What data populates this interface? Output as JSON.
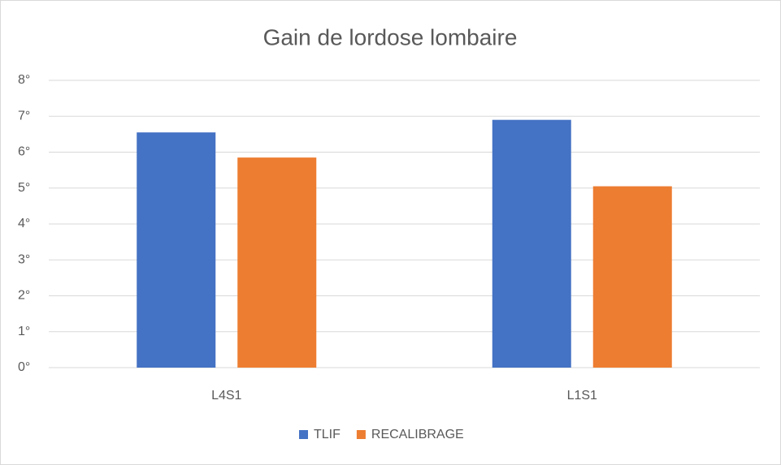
{
  "chart_data": {
    "type": "bar",
    "title": "Gain de lordose lombaire",
    "categories": [
      "L4S1",
      "L1S1"
    ],
    "series": [
      {
        "name": "TLIF",
        "color": "#4472c4",
        "values": [
          6.55,
          6.9
        ]
      },
      {
        "name": "RECALIBRAGE",
        "color": "#ed7d31",
        "values": [
          5.85,
          5.05
        ]
      }
    ],
    "ylim": [
      0,
      8
    ],
    "yticks": [
      {
        "value": 0,
        "label": "0°"
      },
      {
        "value": 1,
        "label": "1°"
      },
      {
        "value": 2,
        "label": "2°"
      },
      {
        "value": 3,
        "label": "3°"
      },
      {
        "value": 4,
        "label": "4°"
      },
      {
        "value": 5,
        "label": "5°"
      },
      {
        "value": 6,
        "label": "6°"
      },
      {
        "value": 7,
        "label": "7°"
      },
      {
        "value": 8,
        "label": "8°"
      }
    ],
    "grid": true,
    "legend": "bottom"
  }
}
